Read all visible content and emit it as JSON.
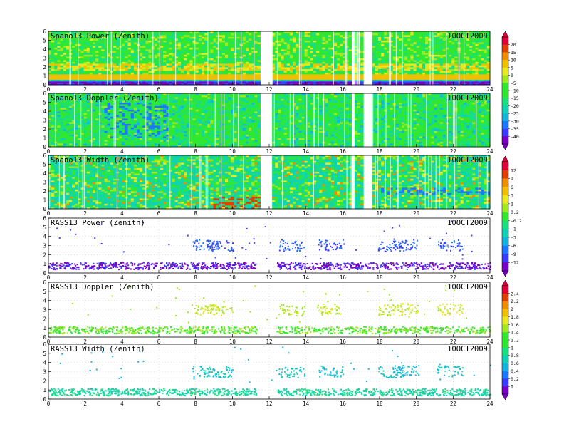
{
  "date_label": "10OCT2009",
  "x_ticks": [
    "0",
    "2",
    "4",
    "6",
    "8",
    "10",
    "12",
    "14",
    "16",
    "18",
    "20",
    "22",
    "24"
  ],
  "y_ticks": [
    "0",
    "1",
    "2",
    "3",
    "4",
    "5",
    "6"
  ],
  "colorbar_palette": [
    "#7a00c8",
    "#3c3cff",
    "#1e78ff",
    "#14b4dc",
    "#10d2b4",
    "#18e07c",
    "#30e830",
    "#a0e820",
    "#e8e820",
    "#f0c000",
    "#f08c00",
    "#e04000",
    "#e0003c"
  ],
  "chart_data": [
    {
      "type": "heatmap",
      "title": "Spano13 Power (Zenith)",
      "xlim": [
        0,
        24
      ],
      "ylim": [
        0,
        6
      ],
      "kind": "spano_power",
      "gaps": [
        [
          11.5,
          12.2
        ],
        [
          16.45,
          16.7
        ],
        [
          17.05,
          17.55
        ]
      ]
    },
    {
      "type": "heatmap",
      "title": "Spano13 Doppler (Zenith)",
      "xlim": [
        0,
        24
      ],
      "ylim": [
        0,
        6
      ],
      "kind": "spano_doppler",
      "gaps": [
        [
          11.5,
          12.2
        ],
        [
          16.45,
          16.7
        ],
        [
          17.05,
          17.55
        ]
      ]
    },
    {
      "type": "heatmap",
      "title": "Spano13 Width (Zenith)",
      "xlim": [
        0,
        24
      ],
      "ylim": [
        0,
        6
      ],
      "kind": "spano_width",
      "gaps": [
        [
          11.5,
          12.2
        ],
        [
          16.45,
          16.7
        ],
        [
          17.05,
          17.55
        ]
      ]
    },
    {
      "type": "scatter",
      "title": "RASS13 Power (Zenith)",
      "xlim": [
        0,
        24
      ],
      "ylim": [
        0,
        6
      ],
      "kind": "rass_power"
    },
    {
      "type": "scatter",
      "title": "RASS13 Doppler (Zenith)",
      "xlim": [
        0,
        24
      ],
      "ylim": [
        0,
        6
      ],
      "kind": "rass_doppler"
    },
    {
      "type": "scatter",
      "title": "RASS13 Width (Zenith)",
      "xlim": [
        0,
        24
      ],
      "ylim": [
        0,
        6
      ],
      "kind": "rass_width"
    }
  ],
  "colorbars": [
    {
      "name": "colorbar-power-doppler",
      "labels": [
        "20",
        "15",
        "10",
        "5",
        "0",
        "-5",
        "-10",
        "-15",
        "-20",
        "-25",
        "-30",
        "-35",
        "-40"
      ]
    },
    {
      "name": "colorbar-width-rass-power",
      "labels": [
        "12",
        "9",
        "6",
        "3",
        "1",
        "0.2",
        "-0.2",
        "-1",
        "-3",
        "-6",
        "-9",
        "-12"
      ]
    },
    {
      "name": "colorbar-rass",
      "labels": [
        "2.4",
        "2.2",
        "2",
        "1.8",
        "1.6",
        "1.4",
        "1.2",
        "1",
        "0.8",
        "0.6",
        "0.4",
        "0.2",
        "0"
      ]
    }
  ]
}
